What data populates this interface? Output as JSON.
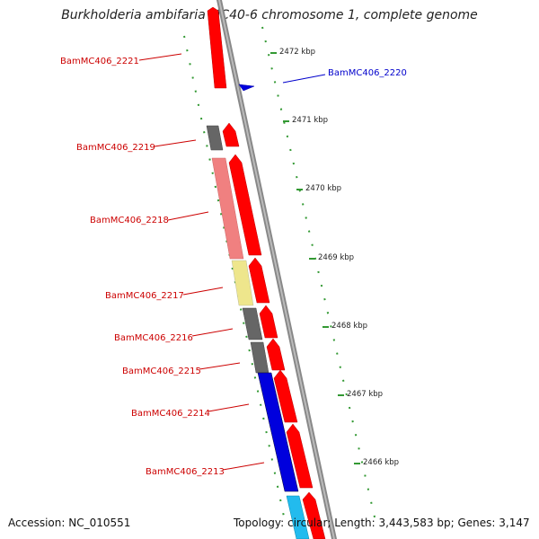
{
  "title": "Burkholderia ambifaria MC40-6 chromosome 1, complete genome",
  "footer": {
    "accession": "Accession: NC_010551",
    "summary": "Topology: circular; Length: 3,443,583 bp; Genes: 3,147"
  },
  "scale_ticks": [
    {
      "label": "2472 kbp",
      "pos": 2472
    },
    {
      "label": "2471 kbp",
      "pos": 2471
    },
    {
      "label": "2470 kbp",
      "pos": 2470
    },
    {
      "label": "2469 kbp",
      "pos": 2469
    },
    {
      "label": "2468 kbp",
      "pos": 2468
    },
    {
      "label": "2467 kbp",
      "pos": 2467
    },
    {
      "label": "2466 kbp",
      "pos": 2466
    }
  ],
  "genes": [
    {
      "name": "BamMC406_2221",
      "strand": "reverse",
      "label_color": "#cc0000"
    },
    {
      "name": "BamMC406_2220",
      "strand": "forward",
      "label_color": "#0000cc"
    },
    {
      "name": "BamMC406_2219",
      "strand": "reverse",
      "label_color": "#cc0000"
    },
    {
      "name": "BamMC406_2218",
      "strand": "reverse",
      "label_color": "#cc0000"
    },
    {
      "name": "BamMC406_2217",
      "strand": "reverse",
      "label_color": "#cc0000"
    },
    {
      "name": "BamMC406_2216",
      "strand": "reverse",
      "label_color": "#cc0000"
    },
    {
      "name": "BamMC406_2215",
      "strand": "reverse",
      "label_color": "#cc0000"
    },
    {
      "name": "BamMC406_2214",
      "strand": "reverse",
      "label_color": "#cc0000"
    },
    {
      "name": "BamMC406_2213",
      "strand": "reverse",
      "label_color": "#cc0000"
    }
  ],
  "colors": {
    "red_cds": "#ff0000",
    "blue_cds": "#0000dd",
    "dark_gray": "#666666",
    "salmon": "#f08080",
    "khaki": "#eee68c",
    "cyan": "#22bbee",
    "backbone": "#808080",
    "tick_green": "#339933"
  }
}
